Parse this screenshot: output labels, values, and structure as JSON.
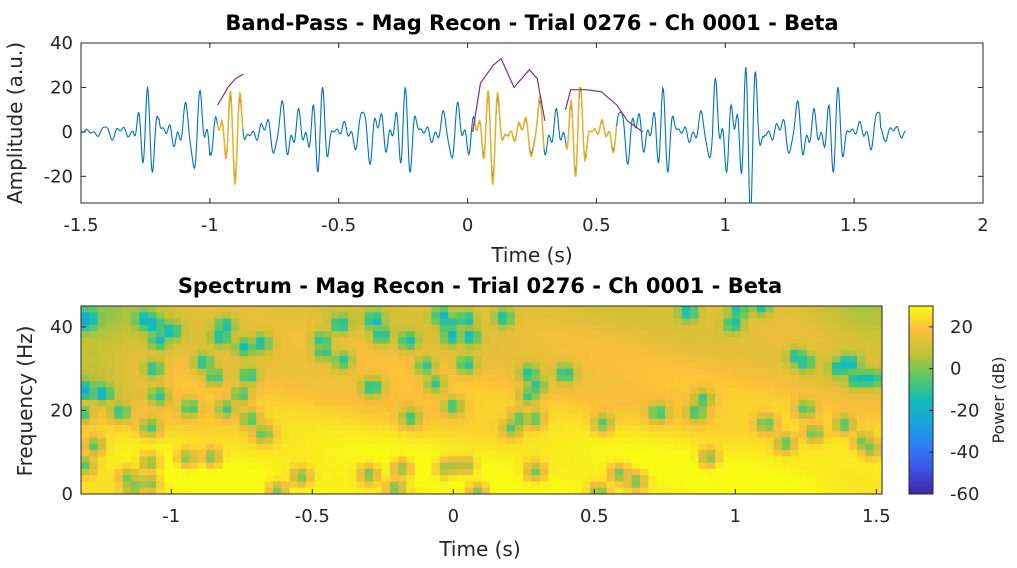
{
  "chart_data": [
    {
      "type": "line",
      "title": "Band-Pass - Mag Recon - Trial 0276 - Ch 0001 - Beta",
      "xlabel": "Time (s)",
      "ylabel": "Amplitude (a.u.)",
      "xlim": [
        -1.5,
        2
      ],
      "ylim": [
        -32,
        40
      ],
      "xticks": [
        "-1.5",
        "-1",
        "-0.5",
        "0",
        "0.5",
        "1",
        "1.5",
        "2"
      ],
      "yticks": [
        "-20",
        "0",
        "20",
        "40"
      ],
      "colors": {
        "signal": "#0072BD",
        "burst": "#EDB120",
        "envelope": "#7E2F8E"
      },
      "series": [
        {
          "role": "signal",
          "x_range": [
            -1.5,
            1.7
          ]
        },
        {
          "role": "burst",
          "segments": [
            [
              -0.97,
              -0.87
            ],
            [
              0.02,
              0.3
            ],
            [
              0.38,
              0.58
            ]
          ]
        },
        {
          "role": "envelope",
          "segments": [
            {
              "x": [
                -0.97,
                -0.93,
                -0.9,
                -0.87
              ],
              "y": [
                12,
                20,
                24,
                26
              ]
            },
            {
              "x": [
                0.02,
                0.05,
                0.1,
                0.13,
                0.18,
                0.24,
                0.27,
                0.3
              ],
              "y": [
                0,
                22,
                30,
                33,
                20,
                28,
                24,
                5
              ]
            },
            {
              "x": [
                0.38,
                0.4,
                0.46,
                0.52,
                0.58,
                0.62,
                0.68
              ],
              "y": [
                10,
                19,
                19,
                18,
                12,
                5,
                0
              ]
            }
          ]
        }
      ]
    },
    {
      "type": "heatmap",
      "title": "Spectrum - Mag Recon - Trial 0276 - Ch 0001 - Beta",
      "xlabel": "Time (s)",
      "ylabel": "Frequency (Hz)",
      "xlim": [
        -1.32,
        1.52
      ],
      "ylim": [
        0,
        45
      ],
      "xticks": [
        "-1",
        "-0.5",
        "0",
        "0.5",
        "1",
        "1.5"
      ],
      "yticks": [
        "0",
        "20",
        "40"
      ],
      "colorbar": {
        "label": "Power (dB)",
        "ticks": [
          "20",
          "0",
          "-20",
          "-40",
          "-60"
        ],
        "range": [
          -60,
          30
        ],
        "colormap": "parula"
      }
    }
  ]
}
